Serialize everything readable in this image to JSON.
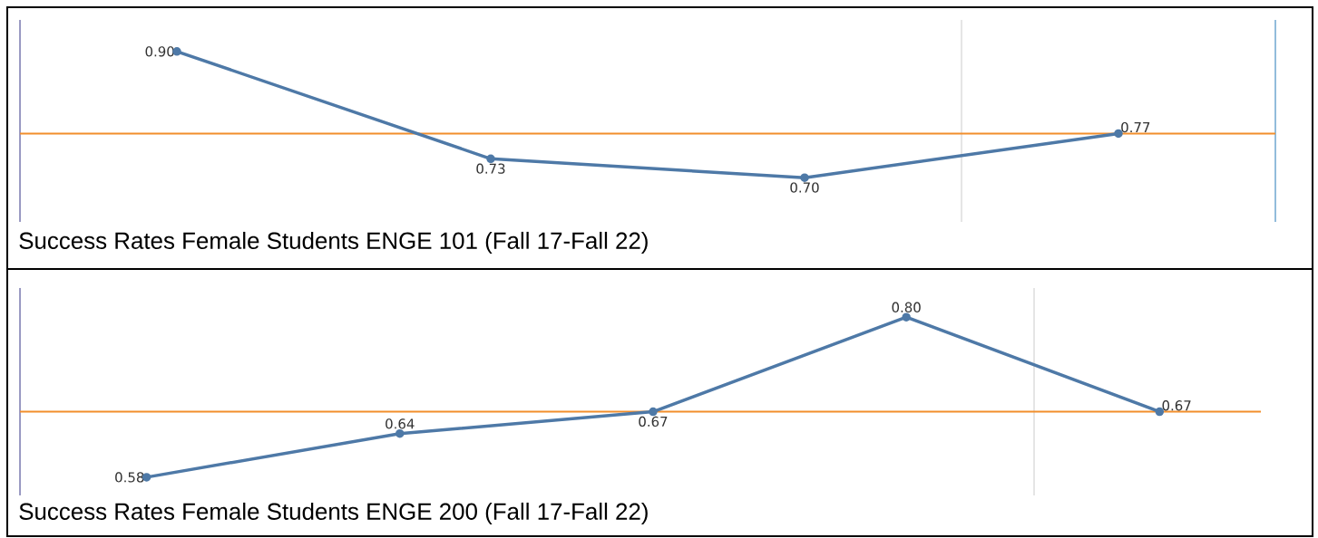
{
  "chart_data": [
    {
      "type": "line",
      "title": "Success Rates Female Students ENGE 101 (Fall 17-Fall 22)",
      "categories": [
        null,
        null,
        null,
        null
      ],
      "series": [
        {
          "color": "#4e79a7",
          "values": [
            0.9,
            0.73,
            0.7,
            0.77
          ],
          "value_labels": [
            "0.90",
            "0.73",
            "0.70",
            "0.77"
          ]
        }
      ],
      "ylim": [
        0.63,
        0.95
      ],
      "marker": "circle",
      "line_style": "solid",
      "ref_lines": [
        {
          "axis": "y",
          "value": 0.77,
          "color": "#f28e2b"
        }
      ]
    },
    {
      "type": "line",
      "title": "Success Rates Female Students ENGE 200 (Fall 17-Fall 22)",
      "categories": [
        null,
        null,
        null,
        null,
        null
      ],
      "series": [
        {
          "color": "#4e79a7",
          "values": [
            0.58,
            0.64,
            0.67,
            0.8,
            0.67
          ],
          "value_labels": [
            "0.58",
            "0.64",
            "0.67",
            "0.80",
            "0.67"
          ]
        }
      ],
      "ylim": [
        0.555,
        0.84
      ],
      "marker": "circle",
      "line_style": "solid",
      "ref_lines": [
        {
          "axis": "y",
          "value": 0.67,
          "color": "#f28e2b"
        }
      ]
    }
  ]
}
